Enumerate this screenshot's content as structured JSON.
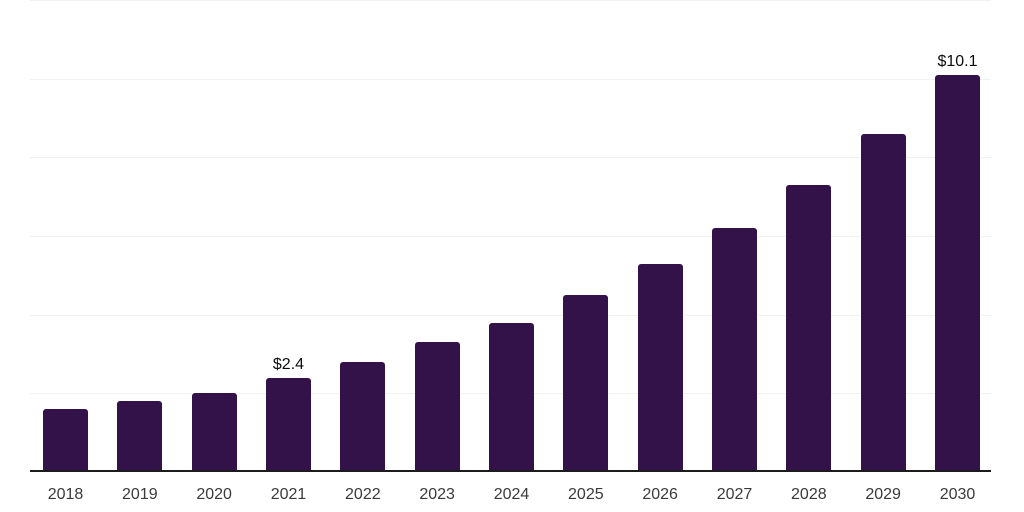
{
  "chart_data": {
    "type": "bar",
    "categories": [
      "2018",
      "2019",
      "2020",
      "2021",
      "2022",
      "2023",
      "2024",
      "2025",
      "2026",
      "2027",
      "2028",
      "2029",
      "2030"
    ],
    "values": [
      1.6,
      1.8,
      2.0,
      2.4,
      2.8,
      3.3,
      3.8,
      4.5,
      5.3,
      6.2,
      7.3,
      8.6,
      10.1
    ],
    "point_labels": [
      "",
      "",
      "",
      "$2.4",
      "",
      "",
      "",
      "",
      "",
      "",
      "",
      "",
      "$10.1"
    ],
    "ylim": [
      0,
      12
    ],
    "gridline_step": 2,
    "grid": true,
    "legend": false,
    "y_axis_labels_visible": false,
    "colors": {
      "bar": "#33124A",
      "axis_line": "#1c1c1c",
      "gridline": "#f1f1f1",
      "tick_label": "#3a3a3a",
      "value_label": "#0d0d0d",
      "background": "#ffffff"
    }
  }
}
